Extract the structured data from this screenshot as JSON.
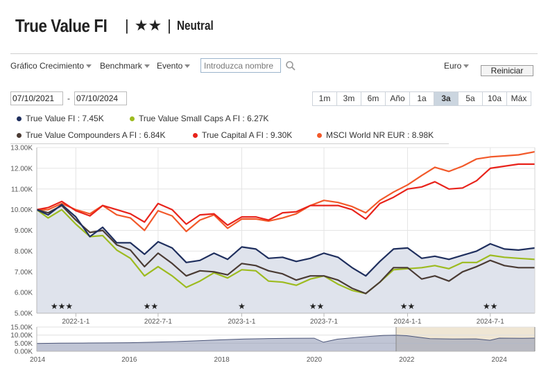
{
  "header": {
    "fund_name": "True Value FI",
    "separator": "|",
    "stars": "★★",
    "rating_label": "Neutral"
  },
  "toolbar": {
    "growth_menu": "Gráfico Crecimiento",
    "benchmark_menu": "Benchmark",
    "event_menu": "Evento",
    "search_placeholder": "Introduzca nombre",
    "currency_menu": "Euro",
    "reset_button": "Reiniciar"
  },
  "date_range": {
    "start": "07/10/2021",
    "dash": "-",
    "end": "07/10/2024"
  },
  "periods": [
    {
      "label": "1m",
      "active": false
    },
    {
      "label": "3m",
      "active": false
    },
    {
      "label": "6m",
      "active": false
    },
    {
      "label": "Año",
      "active": false
    },
    {
      "label": "1a",
      "active": false
    },
    {
      "label": "3a",
      "active": true
    },
    {
      "label": "5a",
      "active": false
    },
    {
      "label": "10a",
      "active": false
    },
    {
      "label": "Máx",
      "active": false
    }
  ],
  "colors": {
    "true_value": "#1f2f5e",
    "small_caps": "#9dbb1f",
    "compounders": "#4a3b34",
    "true_capital": "#e8231b",
    "msci_world": "#f2592a",
    "area_fill": "#dfe3ec",
    "navigator_fill": "#8d96b2",
    "navigator_selection": "#efe6d4"
  },
  "chart_data": {
    "type": "line",
    "y_ticks": [
      "5.00K",
      "6.00K",
      "7.00K",
      "8.00K",
      "9.00K",
      "10.00K",
      "11.00K",
      "12.00K",
      "13.00K"
    ],
    "ylim": [
      5000,
      13000
    ],
    "x_ticks": [
      "2022-1-1",
      "2022-7-1",
      "2023-1-1",
      "2023-7-1",
      "2024-1-1",
      "2024-7-1"
    ],
    "xlim": [
      "2021-10-07",
      "2024-10-07"
    ],
    "series": [
      {
        "name": "True Value FI",
        "legend": "True Value FI : 7.45K",
        "color_key": "true_value",
        "filled": true,
        "points": [
          [
            "2021-10-07",
            10000
          ],
          [
            "2021-11-01",
            9750
          ],
          [
            "2021-12-01",
            10250
          ],
          [
            "2022-01-01",
            9650
          ],
          [
            "2022-02-01",
            8700
          ],
          [
            "2022-03-01",
            9150
          ],
          [
            "2022-04-01",
            8400
          ],
          [
            "2022-05-01",
            8400
          ],
          [
            "2022-06-01",
            7850
          ],
          [
            "2022-07-01",
            8450
          ],
          [
            "2022-08-01",
            8150
          ],
          [
            "2022-09-01",
            7450
          ],
          [
            "2022-10-01",
            7550
          ],
          [
            "2022-11-01",
            7900
          ],
          [
            "2022-12-01",
            7600
          ],
          [
            "2023-01-01",
            8200
          ],
          [
            "2023-02-01",
            8100
          ],
          [
            "2023-03-01",
            7650
          ],
          [
            "2023-04-01",
            7700
          ],
          [
            "2023-05-01",
            7500
          ],
          [
            "2023-06-01",
            7650
          ],
          [
            "2023-07-01",
            7900
          ],
          [
            "2023-08-01",
            7700
          ],
          [
            "2023-09-01",
            7200
          ],
          [
            "2023-10-01",
            6800
          ],
          [
            "2023-11-01",
            7500
          ],
          [
            "2023-12-01",
            8100
          ],
          [
            "2024-01-01",
            8150
          ],
          [
            "2024-02-01",
            7650
          ],
          [
            "2024-03-01",
            7750
          ],
          [
            "2024-04-01",
            7600
          ],
          [
            "2024-05-01",
            7800
          ],
          [
            "2024-06-01",
            8000
          ],
          [
            "2024-07-01",
            8350
          ],
          [
            "2024-08-01",
            8100
          ],
          [
            "2024-09-01",
            8050
          ],
          [
            "2024-10-07",
            8150
          ]
        ]
      },
      {
        "name": "True Value Small Caps A FI",
        "legend": "True Value Small Caps A FI : 6.27K",
        "color_key": "small_caps",
        "filled": false,
        "points": [
          [
            "2021-10-07",
            10000
          ],
          [
            "2021-11-01",
            9600
          ],
          [
            "2021-12-01",
            10000
          ],
          [
            "2022-01-01",
            9300
          ],
          [
            "2022-02-01",
            8700
          ],
          [
            "2022-03-01",
            8750
          ],
          [
            "2022-04-01",
            8050
          ],
          [
            "2022-05-01",
            7650
          ],
          [
            "2022-06-01",
            6800
          ],
          [
            "2022-07-01",
            7250
          ],
          [
            "2022-08-01",
            6800
          ],
          [
            "2022-09-01",
            6250
          ],
          [
            "2022-10-01",
            6550
          ],
          [
            "2022-11-01",
            6950
          ],
          [
            "2022-12-01",
            6700
          ],
          [
            "2023-01-01",
            7100
          ],
          [
            "2023-02-01",
            7050
          ],
          [
            "2023-03-01",
            6550
          ],
          [
            "2023-04-01",
            6500
          ],
          [
            "2023-05-01",
            6350
          ],
          [
            "2023-06-01",
            6650
          ],
          [
            "2023-07-01",
            6800
          ],
          [
            "2023-08-01",
            6400
          ],
          [
            "2023-09-01",
            6100
          ],
          [
            "2023-10-01",
            5950
          ],
          [
            "2023-11-01",
            6500
          ],
          [
            "2023-12-01",
            7100
          ],
          [
            "2024-01-01",
            7150
          ],
          [
            "2024-02-01",
            7200
          ],
          [
            "2024-03-01",
            7300
          ],
          [
            "2024-04-01",
            7150
          ],
          [
            "2024-05-01",
            7450
          ],
          [
            "2024-06-01",
            7450
          ],
          [
            "2024-07-01",
            7800
          ],
          [
            "2024-08-01",
            7700
          ],
          [
            "2024-09-01",
            7650
          ],
          [
            "2024-10-07",
            7600
          ]
        ]
      },
      {
        "name": "True Value Compounders A FI",
        "legend": "True Value Compounders A FI : 6.84K",
        "color_key": "compounders",
        "filled": false,
        "points": [
          [
            "2021-10-07",
            10000
          ],
          [
            "2021-11-01",
            9850
          ],
          [
            "2021-12-01",
            10200
          ],
          [
            "2022-01-01",
            9500
          ],
          [
            "2022-02-01",
            8900
          ],
          [
            "2022-03-01",
            9000
          ],
          [
            "2022-04-01",
            8300
          ],
          [
            "2022-05-01",
            8050
          ],
          [
            "2022-06-01",
            7250
          ],
          [
            "2022-07-01",
            7900
          ],
          [
            "2022-08-01",
            7400
          ],
          [
            "2022-09-01",
            6800
          ],
          [
            "2022-10-01",
            7050
          ],
          [
            "2022-11-01",
            7000
          ],
          [
            "2022-12-01",
            6850
          ],
          [
            "2023-01-01",
            7400
          ],
          [
            "2023-02-01",
            7300
          ],
          [
            "2023-03-01",
            7050
          ],
          [
            "2023-04-01",
            6900
          ],
          [
            "2023-05-01",
            6600
          ],
          [
            "2023-06-01",
            6800
          ],
          [
            "2023-07-01",
            6800
          ],
          [
            "2023-08-01",
            6600
          ],
          [
            "2023-09-01",
            6200
          ],
          [
            "2023-10-01",
            5950
          ],
          [
            "2023-11-01",
            6500
          ],
          [
            "2023-12-01",
            7200
          ],
          [
            "2024-01-01",
            7200
          ],
          [
            "2024-02-01",
            6650
          ],
          [
            "2024-03-01",
            6800
          ],
          [
            "2024-04-01",
            6550
          ],
          [
            "2024-05-01",
            7000
          ],
          [
            "2024-06-01",
            7250
          ],
          [
            "2024-07-01",
            7550
          ],
          [
            "2024-08-01",
            7300
          ],
          [
            "2024-09-01",
            7200
          ],
          [
            "2024-10-07",
            7200
          ]
        ]
      },
      {
        "name": "True Capital A FI",
        "legend": "True Capital A FI : 9.30K",
        "color_key": "true_capital",
        "filled": false,
        "points": [
          [
            "2021-10-07",
            10000
          ],
          [
            "2021-11-01",
            10100
          ],
          [
            "2021-12-01",
            10400
          ],
          [
            "2022-01-01",
            9950
          ],
          [
            "2022-02-01",
            9700
          ],
          [
            "2022-03-01",
            10200
          ],
          [
            "2022-04-01",
            10000
          ],
          [
            "2022-05-01",
            9800
          ],
          [
            "2022-06-01",
            9400
          ],
          [
            "2022-07-01",
            10300
          ],
          [
            "2022-08-01",
            10000
          ],
          [
            "2022-09-01",
            9300
          ],
          [
            "2022-10-01",
            9750
          ],
          [
            "2022-11-01",
            9800
          ],
          [
            "2022-12-01",
            9250
          ],
          [
            "2023-01-01",
            9650
          ],
          [
            "2023-02-01",
            9650
          ],
          [
            "2023-03-01",
            9500
          ],
          [
            "2023-04-01",
            9850
          ],
          [
            "2023-05-01",
            9900
          ],
          [
            "2023-06-01",
            10200
          ],
          [
            "2023-07-01",
            10200
          ],
          [
            "2023-08-01",
            10200
          ],
          [
            "2023-09-01",
            10000
          ],
          [
            "2023-10-01",
            9550
          ],
          [
            "2023-11-01",
            10300
          ],
          [
            "2023-12-01",
            10600
          ],
          [
            "2024-01-01",
            11000
          ],
          [
            "2024-02-01",
            11100
          ],
          [
            "2024-03-01",
            11350
          ],
          [
            "2024-04-01",
            11000
          ],
          [
            "2024-05-01",
            11050
          ],
          [
            "2024-06-01",
            11400
          ],
          [
            "2024-07-01",
            12000
          ],
          [
            "2024-08-01",
            12100
          ],
          [
            "2024-09-01",
            12200
          ],
          [
            "2024-10-07",
            12200
          ]
        ]
      },
      {
        "name": "MSCI World NR EUR",
        "legend": "MSCI World NR EUR : 8.98K",
        "color_key": "msci_world",
        "filled": false,
        "points": [
          [
            "2021-10-07",
            10000
          ],
          [
            "2021-11-01",
            10000
          ],
          [
            "2021-12-01",
            10300
          ],
          [
            "2022-01-01",
            10000
          ],
          [
            "2022-02-01",
            9800
          ],
          [
            "2022-03-01",
            10200
          ],
          [
            "2022-04-01",
            9750
          ],
          [
            "2022-05-01",
            9600
          ],
          [
            "2022-06-01",
            9000
          ],
          [
            "2022-07-01",
            9950
          ],
          [
            "2022-08-01",
            9700
          ],
          [
            "2022-09-01",
            8950
          ],
          [
            "2022-10-01",
            9500
          ],
          [
            "2022-11-01",
            9750
          ],
          [
            "2022-12-01",
            9100
          ],
          [
            "2023-01-01",
            9550
          ],
          [
            "2023-02-01",
            9550
          ],
          [
            "2023-03-01",
            9450
          ],
          [
            "2023-04-01",
            9600
          ],
          [
            "2023-05-01",
            9800
          ],
          [
            "2023-06-01",
            10200
          ],
          [
            "2023-07-01",
            10450
          ],
          [
            "2023-08-01",
            10350
          ],
          [
            "2023-09-01",
            10150
          ],
          [
            "2023-10-01",
            9850
          ],
          [
            "2023-11-01",
            10450
          ],
          [
            "2023-12-01",
            10850
          ],
          [
            "2024-01-01",
            11200
          ],
          [
            "2024-02-01",
            11650
          ],
          [
            "2024-03-01",
            12050
          ],
          [
            "2024-04-01",
            11850
          ],
          [
            "2024-05-01",
            12100
          ],
          [
            "2024-06-01",
            12450
          ],
          [
            "2024-07-01",
            12550
          ],
          [
            "2024-08-01",
            12600
          ],
          [
            "2024-09-01",
            12650
          ],
          [
            "2024-10-07",
            12800
          ]
        ]
      }
    ],
    "rating_markers": [
      {
        "date": "2021-12-01",
        "stars": "★★★"
      },
      {
        "date": "2022-06-15",
        "stars": "★★"
      },
      {
        "date": "2023-01-01",
        "stars": "★"
      },
      {
        "date": "2023-06-15",
        "stars": "★★"
      },
      {
        "date": "2024-01-01",
        "stars": "★★"
      },
      {
        "date": "2024-07-01",
        "stars": "★★"
      }
    ],
    "navigator": {
      "y_ticks": [
        "15.00K",
        "10.00K",
        "5.00K",
        "0.00K"
      ],
      "ylim": [
        0,
        15000
      ],
      "x_ticks": [
        "2014",
        "2016",
        "2018",
        "2020",
        "2022",
        "2024"
      ],
      "xlim": [
        2014.0,
        2024.77
      ],
      "selection": [
        2021.77,
        2024.77
      ],
      "points": [
        [
          2014.0,
          4800
        ],
        [
          2014.5,
          5000
        ],
        [
          2015.0,
          5100
        ],
        [
          2015.5,
          5200
        ],
        [
          2016.0,
          5300
        ],
        [
          2016.5,
          5600
        ],
        [
          2017.0,
          6000
        ],
        [
          2017.5,
          6500
        ],
        [
          2018.0,
          7100
        ],
        [
          2018.5,
          7600
        ],
        [
          2019.0,
          7900
        ],
        [
          2019.5,
          8000
        ],
        [
          2020.0,
          8100
        ],
        [
          2020.2,
          5600
        ],
        [
          2020.5,
          7500
        ],
        [
          2021.0,
          8800
        ],
        [
          2021.5,
          9800
        ],
        [
          2021.77,
          10000
        ],
        [
          2022.0,
          9650
        ],
        [
          2022.5,
          7850
        ],
        [
          2023.0,
          7600
        ],
        [
          2023.5,
          7650
        ],
        [
          2023.8,
          6800
        ],
        [
          2024.0,
          8150
        ],
        [
          2024.5,
          8000
        ],
        [
          2024.77,
          8150
        ]
      ]
    }
  }
}
